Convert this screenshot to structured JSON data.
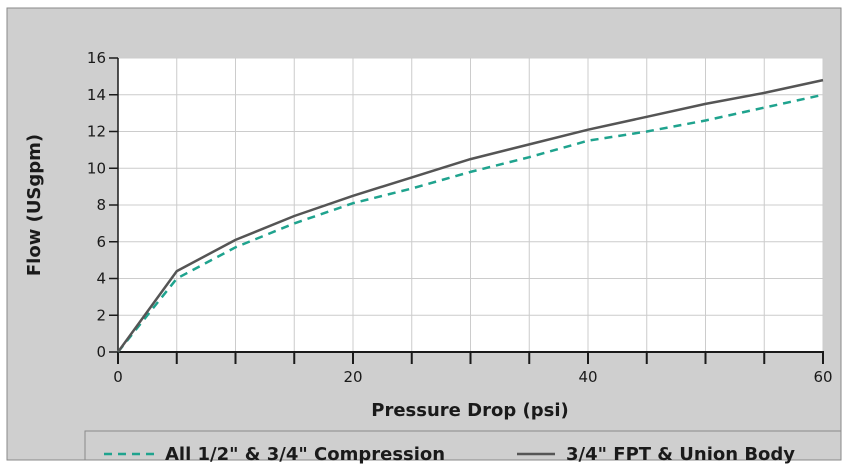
{
  "chart_data": {
    "type": "line",
    "xlabel": "Pressure Drop (psi)",
    "ylabel": "Flow (USgpm)",
    "xlim": [
      0,
      60
    ],
    "ylim": [
      0,
      16
    ],
    "x_ticks": [
      0,
      20,
      40,
      60
    ],
    "y_ticks": [
      0,
      2,
      4,
      6,
      8,
      10,
      12,
      14,
      16
    ],
    "grid": true,
    "legend_position": "bottom",
    "series": [
      {
        "name": "All 1/2\" & 3/4\" Compression",
        "style": "dashed",
        "color": "#1fa38e",
        "x": [
          0,
          5,
          10,
          15,
          20,
          25,
          30,
          35,
          40,
          45,
          50,
          55,
          60
        ],
        "y": [
          0,
          4.0,
          5.7,
          7.0,
          8.1,
          8.9,
          9.8,
          10.6,
          11.5,
          12.0,
          12.6,
          13.3,
          14.0
        ]
      },
      {
        "name": "3/4\" FPT & Union Body",
        "style": "solid",
        "color": "#555555",
        "x": [
          0,
          5,
          10,
          15,
          20,
          25,
          30,
          35,
          40,
          45,
          50,
          55,
          60
        ],
        "y": [
          0,
          4.4,
          6.1,
          7.4,
          8.5,
          9.5,
          10.5,
          11.3,
          12.1,
          12.8,
          13.5,
          14.1,
          14.8
        ]
      }
    ]
  },
  "colors": {
    "panel_background": "#cfcfcf",
    "plot_background": "#ffffff",
    "grid": "#cccccc",
    "axis": "#1a1a1a"
  }
}
